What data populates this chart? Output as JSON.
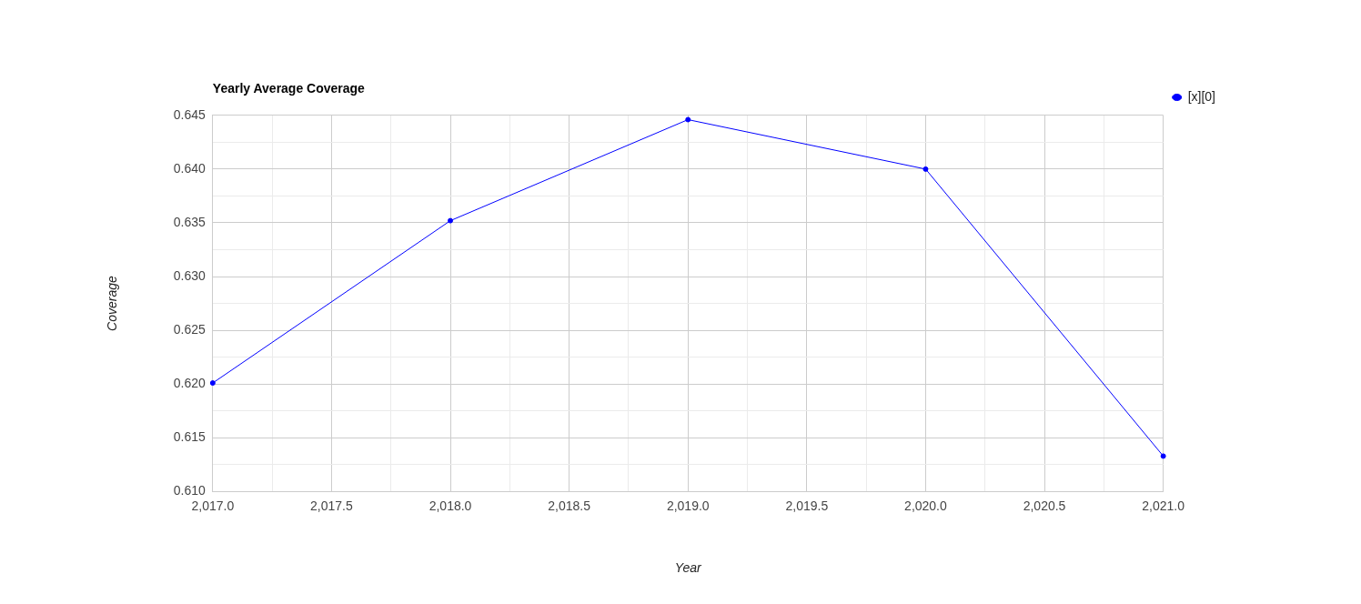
{
  "chart_data": {
    "type": "line",
    "title": "Yearly Average Coverage",
    "xlabel": "Year",
    "ylabel": "Coverage",
    "x": [
      2017,
      2018,
      2019,
      2020,
      2021
    ],
    "series": [
      {
        "name": "[x][0]",
        "color": "#0000ff",
        "values": [
          0.6201,
          0.6352,
          0.6446,
          0.64,
          0.6133
        ]
      }
    ],
    "xlim": [
      2017,
      2021
    ],
    "xticks": [
      {
        "value": 2017,
        "label": "2,017.0"
      },
      {
        "value": 2017.25,
        "label": null
      },
      {
        "value": 2017.5,
        "label": "2,017.5"
      },
      {
        "value": 2017.75,
        "label": null
      },
      {
        "value": 2018,
        "label": "2,018.0"
      },
      {
        "value": 2018.25,
        "label": null
      },
      {
        "value": 2018.5,
        "label": "2,018.5"
      },
      {
        "value": 2018.75,
        "label": null
      },
      {
        "value": 2019,
        "label": "2,019.0"
      },
      {
        "value": 2019.25,
        "label": null
      },
      {
        "value": 2019.5,
        "label": "2,019.5"
      },
      {
        "value": 2019.75,
        "label": null
      },
      {
        "value": 2020,
        "label": "2,020.0"
      },
      {
        "value": 2020.25,
        "label": null
      },
      {
        "value": 2020.5,
        "label": "2,020.5"
      },
      {
        "value": 2020.75,
        "label": null
      },
      {
        "value": 2021,
        "label": "2,021.0"
      }
    ],
    "ylim": [
      0.61,
      0.645
    ],
    "yticks": [
      {
        "value": 0.61,
        "label": "0.610"
      },
      {
        "value": 0.6125,
        "label": null
      },
      0.615,
      {
        "value": 0.6175,
        "label": null
      },
      {
        "value": 0.62,
        "label": "0.620"
      },
      {
        "value": 0.6225,
        "label": null
      },
      0.625,
      {
        "value": 0.6275,
        "label": null
      },
      {
        "value": 0.63,
        "label": "0.630"
      },
      {
        "value": 0.6325,
        "label": null
      },
      0.635,
      {
        "value": 0.6375,
        "label": null
      },
      {
        "value": 0.64,
        "label": "0.640"
      },
      {
        "value": 0.6425,
        "label": null
      },
      0.645
    ],
    "grid": true,
    "legend": "top right",
    "marker": "circle",
    "line_style": "solid"
  }
}
